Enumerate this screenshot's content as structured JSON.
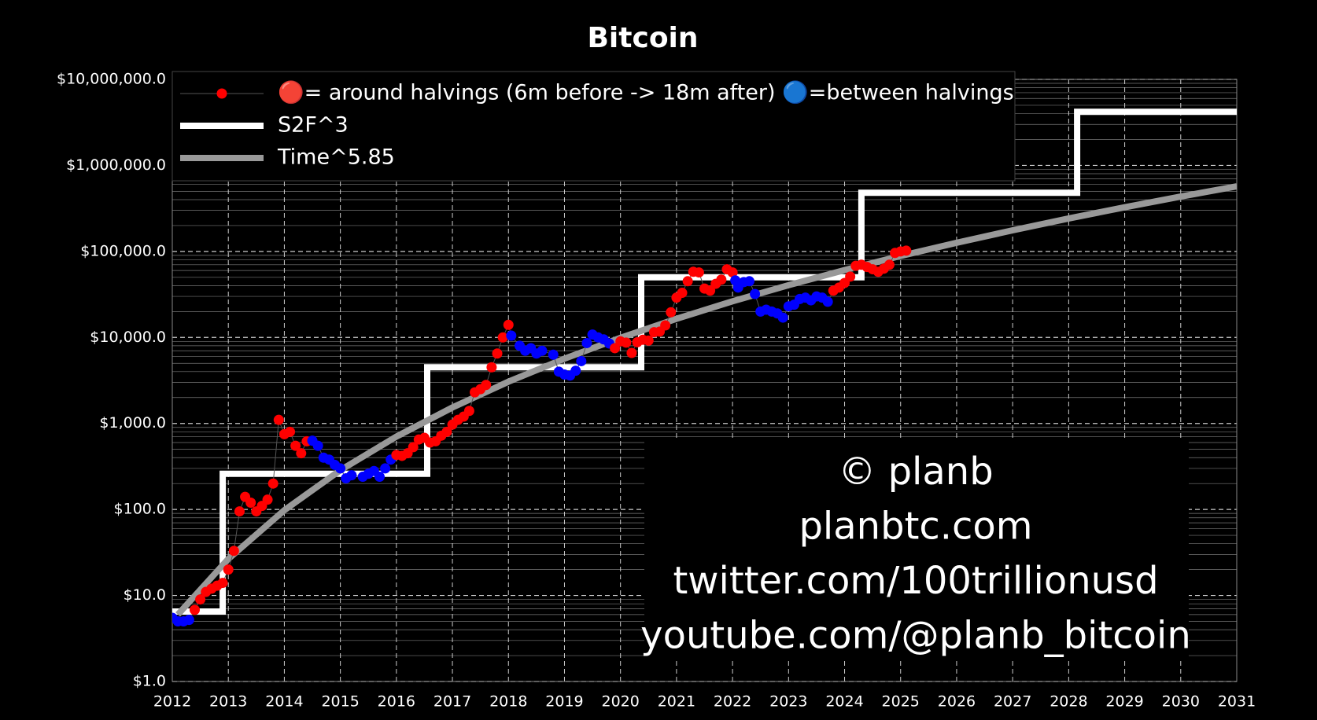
{
  "chart_data": {
    "type": "line",
    "title": "Bitcoin",
    "xlim": [
      2012,
      2031
    ],
    "xticks": [
      2012,
      2013,
      2014,
      2015,
      2016,
      2017,
      2018,
      2019,
      2020,
      2021,
      2022,
      2023,
      2024,
      2025,
      2026,
      2027,
      2028,
      2029,
      2030,
      2031
    ],
    "ylim": [
      1,
      10000000
    ],
    "log_y": true,
    "grid": true,
    "minor_grid": true,
    "legend": "upper left",
    "yticks": [
      {
        "value": 1,
        "label": "$1.0"
      },
      {
        "value": 10,
        "label": "$10.0"
      },
      {
        "value": 100,
        "label": "$100.0"
      },
      {
        "value": 1000,
        "label": "$1,000.0"
      },
      {
        "value": 10000,
        "label": "$10,000.0"
      },
      {
        "value": 100000,
        "label": "$100,000.0"
      },
      {
        "value": 1000000,
        "label": "$1,000,000.0"
      },
      {
        "value": 10000000,
        "label": "$10,000,000.0"
      }
    ],
    "series": [
      {
        "name": "🔴= around halvings (6m before -> 18m after) 🔵=between halvings",
        "style": "markers",
        "color": "#555555",
        "marker_color": "#ff0000",
        "x": [
          2012.0,
          2012.1,
          2012.2,
          2012.3,
          2012.4,
          2012.5,
          2012.6,
          2012.7,
          2012.8,
          2012.9,
          2013.0,
          2013.1,
          2013.2,
          2013.3,
          2013.4,
          2013.5,
          2013.6,
          2013.7,
          2013.8,
          2013.9,
          2014.0,
          2014.1,
          2014.2,
          2014.3,
          2014.4,
          2014.5,
          2014.6,
          2014.7,
          2014.8,
          2014.9,
          2015.0,
          2015.1,
          2015.2,
          2015.4,
          2015.5,
          2015.6,
          2015.7,
          2015.8,
          2015.9,
          2016.0,
          2016.1,
          2016.2,
          2016.3,
          2016.4,
          2016.5,
          2016.6,
          2016.7,
          2016.8,
          2016.9,
          2017.0,
          2017.1,
          2017.2,
          2017.3,
          2017.4,
          2017.5,
          2017.6,
          2017.7,
          2017.8,
          2017.9,
          2018.0,
          2018.05,
          2018.2,
          2018.3,
          2018.4,
          2018.5,
          2018.6,
          2018.8,
          2018.9,
          2019.0,
          2019.1,
          2019.2,
          2019.3,
          2019.4,
          2019.5,
          2019.6,
          2019.7,
          2019.8,
          2019.9,
          2020.0,
          2020.1,
          2020.2,
          2020.3,
          2020.4,
          2020.5,
          2020.6,
          2020.7,
          2020.8,
          2020.9,
          2021.0,
          2021.1,
          2021.2,
          2021.3,
          2021.4,
          2021.5,
          2021.6,
          2021.7,
          2021.8,
          2021.9,
          2022.0,
          2022.05,
          2022.1,
          2022.2,
          2022.3,
          2022.4,
          2022.5,
          2022.6,
          2022.7,
          2022.8,
          2022.9,
          2023.0,
          2023.1,
          2023.2,
          2023.3,
          2023.4,
          2023.5,
          2023.6,
          2023.7,
          2023.8,
          2023.9,
          2024.0,
          2024.1,
          2024.2,
          2024.3,
          2024.4,
          2024.5,
          2024.6,
          2024.7,
          2024.8,
          2024.9,
          2025.0,
          2025.1
        ],
        "values": [
          5.5,
          5,
          5,
          5.2,
          6.8,
          9,
          11,
          12,
          13,
          14,
          20,
          33,
          95,
          140,
          120,
          95,
          110,
          130,
          200,
          1100,
          750,
          800,
          550,
          450,
          620,
          630,
          550,
          400,
          380,
          330,
          300,
          230,
          250,
          240,
          260,
          280,
          240,
          300,
          380,
          430,
          420,
          450,
          530,
          650,
          680,
          600,
          620,
          720,
          800,
          970,
          1100,
          1200,
          1400,
          2300,
          2500,
          2800,
          4500,
          6500,
          10000,
          14000,
          10500,
          8000,
          7000,
          7500,
          6500,
          7000,
          6300,
          4000,
          3700,
          3600,
          4100,
          5300,
          8600,
          10800,
          10000,
          9500,
          8500,
          7500,
          9000,
          8700,
          6600,
          8800,
          9400,
          9200,
          11500,
          11700,
          13800,
          19600,
          29000,
          33000,
          45000,
          58000,
          57000,
          37000,
          35000,
          42000,
          47000,
          62000,
          57000,
          46000,
          38000,
          44000,
          45000,
          32000,
          20000,
          21000,
          20000,
          19000,
          17000,
          23000,
          24000,
          28000,
          29000,
          27000,
          30000,
          29000,
          26000,
          35000,
          38000,
          43000,
          51000,
          68000,
          70000,
          66000,
          62000,
          58000,
          63000,
          70000,
          96000,
          100000,
          102000
        ],
        "point_colors": [
          "#0000ff",
          "#0000ff",
          "#0000ff",
          "#0000ff",
          "#ff0000",
          "#ff0000",
          "#ff0000",
          "#ff0000",
          "#ff0000",
          "#ff0000",
          "#ff0000",
          "#ff0000",
          "#ff0000",
          "#ff0000",
          "#ff0000",
          "#ff0000",
          "#ff0000",
          "#ff0000",
          "#ff0000",
          "#ff0000",
          "#ff0000",
          "#ff0000",
          "#ff0000",
          "#ff0000",
          "#ff0000",
          "#0000ff",
          "#0000ff",
          "#0000ff",
          "#0000ff",
          "#0000ff",
          "#0000ff",
          "#0000ff",
          "#0000ff",
          "#0000ff",
          "#0000ff",
          "#0000ff",
          "#0000ff",
          "#0000ff",
          "#0000ff",
          "#ff0000",
          "#ff0000",
          "#ff0000",
          "#ff0000",
          "#ff0000",
          "#ff0000",
          "#ff0000",
          "#ff0000",
          "#ff0000",
          "#ff0000",
          "#ff0000",
          "#ff0000",
          "#ff0000",
          "#ff0000",
          "#ff0000",
          "#ff0000",
          "#ff0000",
          "#ff0000",
          "#ff0000",
          "#ff0000",
          "#ff0000",
          "#0000ff",
          "#0000ff",
          "#0000ff",
          "#0000ff",
          "#0000ff",
          "#0000ff",
          "#0000ff",
          "#0000ff",
          "#0000ff",
          "#0000ff",
          "#0000ff",
          "#0000ff",
          "#0000ff",
          "#0000ff",
          "#0000ff",
          "#0000ff",
          "#0000ff",
          "#ff0000",
          "#ff0000",
          "#ff0000",
          "#ff0000",
          "#ff0000",
          "#ff0000",
          "#ff0000",
          "#ff0000",
          "#ff0000",
          "#ff0000",
          "#ff0000",
          "#ff0000",
          "#ff0000",
          "#ff0000",
          "#ff0000",
          "#ff0000",
          "#ff0000",
          "#ff0000",
          "#ff0000",
          "#ff0000",
          "#ff0000",
          "#ff0000",
          "#0000ff",
          "#0000ff",
          "#0000ff",
          "#0000ff",
          "#0000ff",
          "#0000ff",
          "#0000ff",
          "#0000ff",
          "#0000ff",
          "#0000ff",
          "#0000ff",
          "#0000ff",
          "#0000ff",
          "#0000ff",
          "#0000ff",
          "#0000ff",
          "#0000ff",
          "#0000ff",
          "#ff0000",
          "#ff0000",
          "#ff0000",
          "#ff0000",
          "#ff0000",
          "#ff0000",
          "#ff0000",
          "#ff0000",
          "#ff0000",
          "#ff0000",
          "#ff0000",
          "#ff0000",
          "#ff0000",
          "#ff0000"
        ]
      },
      {
        "name": "S2F^3",
        "style": "line",
        "color": "#ffffff",
        "x": [
          2012,
          2012.9,
          2012.9,
          2016.55,
          2016.55,
          2020.37,
          2020.37,
          2024.3,
          2024.3,
          2028.15,
          2028.15,
          2031
        ],
        "values": [
          6.5,
          6.5,
          260,
          260,
          4500,
          4500,
          50000,
          50000,
          480000,
          480000,
          4200000,
          4200000
        ]
      },
      {
        "name": "Time^5.85",
        "style": "line",
        "color": "#999999",
        "x": [
          2012.1,
          2013,
          2014,
          2015,
          2016,
          2017,
          2018,
          2019,
          2020,
          2021,
          2022,
          2023,
          2024,
          2025,
          2026,
          2027,
          2028,
          2029,
          2030,
          2031
        ],
        "values": [
          6,
          26.6,
          98,
          286,
          703,
          1534,
          3056,
          5660,
          9890,
          16470,
          26300,
          40500,
          60700,
          88600,
          126000,
          176000,
          242000,
          326000,
          434000,
          570000
        ]
      }
    ],
    "annotation": [
      "© planb",
      "planbtc.com",
      "twitter.com/100trillionusd",
      "youtube.com/@planb_bitcoin"
    ]
  }
}
